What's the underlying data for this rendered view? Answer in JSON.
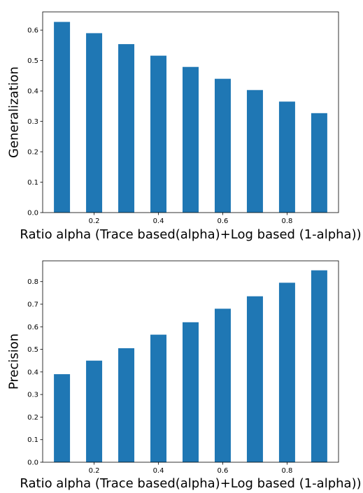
{
  "chart_data": [
    {
      "type": "bar",
      "x": [
        0.1,
        0.2,
        0.3,
        0.4,
        0.5,
        0.6,
        0.7,
        0.8,
        0.9
      ],
      "values": [
        0.627,
        0.59,
        0.554,
        0.516,
        0.479,
        0.44,
        0.403,
        0.365,
        0.327
      ],
      "title": "",
      "xlabel": "Ratio alpha (Trace based(alpha)+Log based (1-alpha))",
      "ylabel": "Generalization",
      "xlim": [
        0.04,
        0.96
      ],
      "ylim": [
        0.0,
        0.66
      ],
      "xticks": [
        0.2,
        0.4,
        0.6,
        0.8
      ],
      "xtick_labels": [
        "0.2",
        "0.4",
        "0.6",
        "0.8"
      ],
      "yticks": [
        0.0,
        0.1,
        0.2,
        0.3,
        0.4,
        0.5,
        0.6
      ],
      "ytick_labels": [
        "0.0",
        "0.1",
        "0.2",
        "0.3",
        "0.4",
        "0.5",
        "0.6"
      ],
      "bar_width": 0.05,
      "color": "#1f77b4",
      "grid": false,
      "legend": "none"
    },
    {
      "type": "bar",
      "x": [
        0.1,
        0.2,
        0.3,
        0.4,
        0.5,
        0.6,
        0.7,
        0.8,
        0.9
      ],
      "values": [
        0.39,
        0.45,
        0.505,
        0.565,
        0.62,
        0.68,
        0.735,
        0.795,
        0.85
      ],
      "title": "",
      "xlabel": "Ratio alpha (Trace based(alpha)+Log based (1-alpha))",
      "ylabel": "Precision",
      "xlim": [
        0.04,
        0.96
      ],
      "ylim": [
        0.0,
        0.892
      ],
      "xticks": [
        0.2,
        0.4,
        0.6,
        0.8
      ],
      "xtick_labels": [
        "0.2",
        "0.4",
        "0.6",
        "0.8"
      ],
      "yticks": [
        0.0,
        0.1,
        0.2,
        0.3,
        0.4,
        0.5,
        0.6,
        0.7,
        0.8
      ],
      "ytick_labels": [
        "0.0",
        "0.1",
        "0.2",
        "0.3",
        "0.4",
        "0.5",
        "0.6",
        "0.7",
        "0.8"
      ],
      "bar_width": 0.05,
      "color": "#1f77b4",
      "grid": false,
      "legend": "none"
    }
  ]
}
